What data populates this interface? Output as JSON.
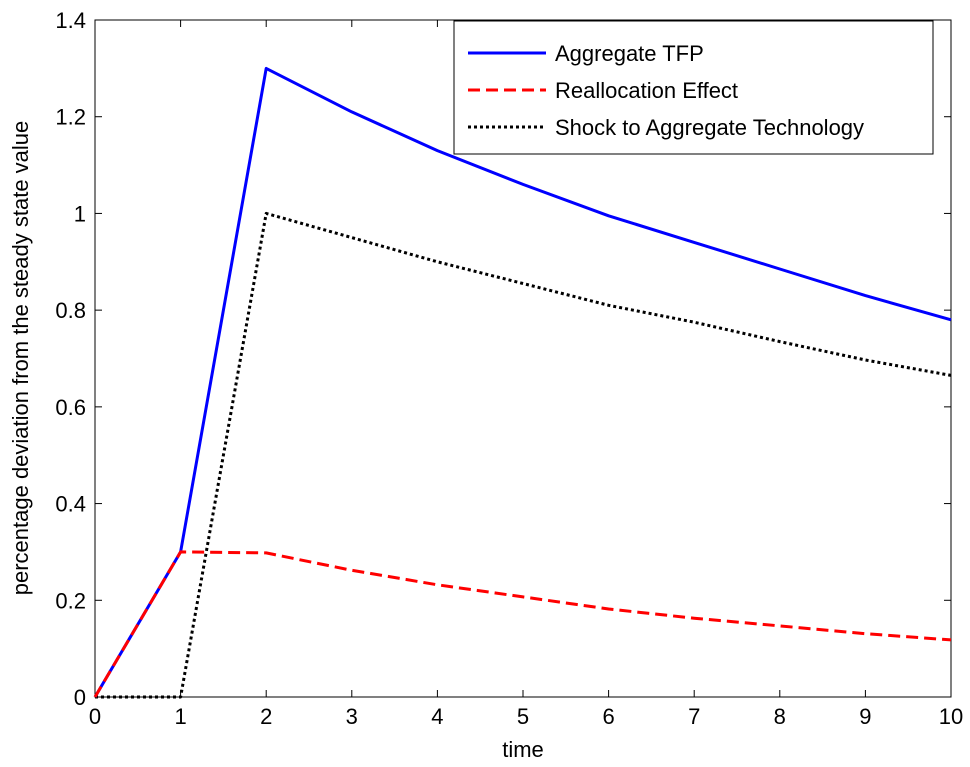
{
  "chart_data": {
    "type": "line",
    "title": "",
    "xlabel": "time",
    "ylabel": "percentage deviation from the steady state value",
    "xlim": [
      0,
      10
    ],
    "ylim": [
      0,
      1.4
    ],
    "xticks": [
      0,
      1,
      2,
      3,
      4,
      5,
      6,
      7,
      8,
      9,
      10
    ],
    "yticks": [
      0,
      0.2,
      0.4,
      0.6,
      0.8,
      1,
      1.2,
      1.4
    ],
    "ytick_labels": [
      "0",
      "0.2",
      "0.4",
      "0.6",
      "0.8",
      "1",
      "1.2",
      "1.4"
    ],
    "grid": false,
    "legend_position": "top-right",
    "x": [
      0,
      1,
      2,
      3,
      4,
      5,
      6,
      7,
      8,
      9,
      10
    ],
    "series": [
      {
        "name": "Aggregate TFP",
        "color": "#0000ff",
        "style": "solid",
        "values": [
          0,
          0.3,
          1.3,
          1.21,
          1.13,
          1.06,
          0.995,
          0.94,
          0.885,
          0.83,
          0.78
        ]
      },
      {
        "name": "Reallocation Effect",
        "color": "#ff0000",
        "style": "dashed",
        "values": [
          0,
          0.3,
          0.298,
          0.262,
          0.232,
          0.207,
          0.182,
          0.163,
          0.147,
          0.131,
          0.118
        ]
      },
      {
        "name": "Shock to Aggregate Technology",
        "color": "#000000",
        "style": "dotted",
        "values": [
          0,
          0,
          1.0,
          0.95,
          0.9,
          0.855,
          0.81,
          0.775,
          0.735,
          0.697,
          0.665
        ]
      }
    ]
  }
}
